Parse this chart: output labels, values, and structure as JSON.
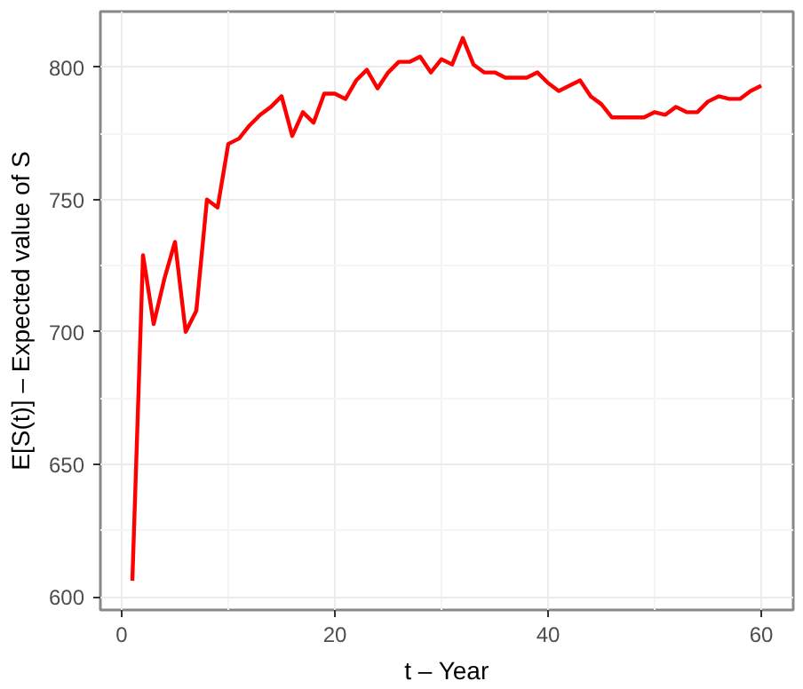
{
  "chart_data": {
    "type": "line",
    "xlabel": "t – Year",
    "ylabel": "E[S(t)] – Expected value of S",
    "x": [
      1,
      2,
      3,
      4,
      5,
      6,
      7,
      8,
      9,
      10,
      11,
      12,
      13,
      14,
      15,
      16,
      17,
      18,
      19,
      20,
      21,
      22,
      23,
      24,
      25,
      26,
      27,
      28,
      29,
      30,
      31,
      32,
      33,
      34,
      35,
      36,
      37,
      38,
      39,
      40,
      41,
      42,
      43,
      44,
      45,
      46,
      47,
      48,
      49,
      50,
      51,
      52,
      53,
      54,
      55,
      56,
      57,
      58,
      59,
      60
    ],
    "series": [
      {
        "color": "#ff0000",
        "values": [
          606,
          729,
          703,
          720,
          734,
          700,
          708,
          750,
          747,
          771,
          773,
          778,
          782,
          785,
          789,
          774,
          783,
          779,
          790,
          790,
          788,
          795,
          799,
          792,
          798,
          802,
          802,
          804,
          798,
          803,
          801,
          811,
          801,
          798,
          798,
          796,
          796,
          796,
          798,
          794,
          791,
          793,
          795,
          789,
          786,
          781,
          781,
          781,
          781,
          783,
          782,
          785,
          783,
          783,
          787,
          789,
          788,
          788,
          791,
          793
        ]
      }
    ],
    "xlim": [
      -2,
      63
    ],
    "ylim": [
      595,
      821
    ],
    "xticks": [
      0,
      20,
      40,
      60
    ],
    "yticks": [
      600,
      650,
      700,
      750,
      800
    ],
    "grid": true,
    "marker": "none",
    "line_style": "solid"
  }
}
